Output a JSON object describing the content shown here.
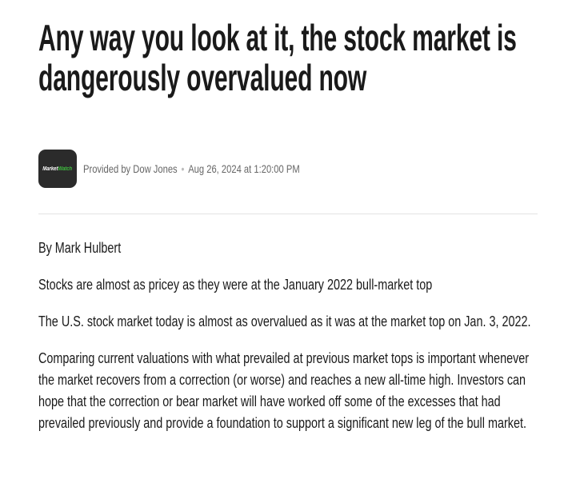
{
  "headline": "Any way you look at it, the stock market is dangerously overvalued now",
  "source": {
    "logo_text_a": "Market",
    "logo_text_b": "Watch",
    "provider": "Provided by Dow Jones",
    "separator": "•",
    "timestamp": "Aug 26, 2024 at 1:20:00 PM"
  },
  "article": {
    "byline": "By Mark Hulbert",
    "paragraphs": [
      "Stocks are almost as pricey as they were at the January 2022 bull-market top",
      "The U.S. stock market today is almost as overvalued as it was at the market top on Jan. 3, 2022.",
      "Comparing current valuations with what prevailed at previous market tops is important whenever the market recovers from a correction (or worse) and reaches a new all-time high. Investors can hope that the correction or bear market will have worked off some of the excesses that had prevailed previously and provide a foundation to support a significant new leg of the bull market."
    ]
  },
  "colors": {
    "text": "#1a1a1a",
    "meta": "#666666",
    "logo_bg": "#2b2b2b",
    "logo_accent": "#3fbf3f"
  }
}
